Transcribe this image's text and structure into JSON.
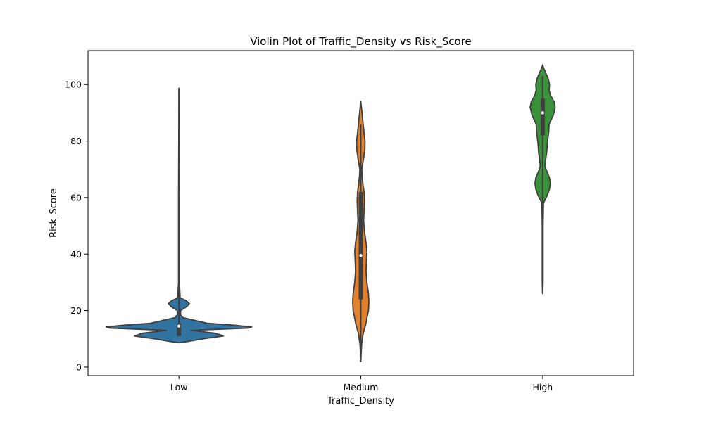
{
  "chart_data": {
    "type": "violin",
    "title": "Violin Plot of Traffic_Density vs Risk_Score",
    "xlabel": "Traffic_Density",
    "ylabel": "Risk_Score",
    "categories": [
      "Low",
      "Medium",
      "High"
    ],
    "ylim": [
      -3,
      112
    ],
    "yticks": [
      0,
      20,
      40,
      60,
      80,
      100
    ],
    "grid": false,
    "colors": {
      "Low": "#3274a1",
      "Medium": "#e1812c",
      "High": "#3a923a",
      "outline": "#3f3f3f"
    },
    "violins": [
      {
        "category": "Low",
        "min": 11,
        "q1": 11,
        "median": 14.5,
        "q3": 15.5,
        "max": 98.7,
        "density": [
          [
            8.6,
            0.0
          ],
          [
            9.0,
            0.1
          ],
          [
            10.0,
            0.3
          ],
          [
            11.0,
            0.55
          ],
          [
            12.0,
            0.45
          ],
          [
            13.0,
            0.15
          ],
          [
            13.8,
            0.85
          ],
          [
            14.2,
            0.9
          ],
          [
            14.8,
            0.7
          ],
          [
            15.5,
            0.35
          ],
          [
            16.5,
            0.2
          ],
          [
            17.5,
            0.05
          ],
          [
            18.5,
            0.02
          ],
          [
            20.0,
            0.02
          ],
          [
            21.5,
            0.1
          ],
          [
            22.5,
            0.13
          ],
          [
            23.5,
            0.09
          ],
          [
            24.5,
            0.015
          ],
          [
            30.0,
            0.005
          ],
          [
            60.0,
            0.005
          ],
          [
            98.7,
            0.0
          ]
        ]
      },
      {
        "category": "Medium",
        "min": 2,
        "q1": 24,
        "median": 39.5,
        "q3": 62,
        "max": 86,
        "density": [
          [
            2.0,
            0.0
          ],
          [
            8.0,
            0.01
          ],
          [
            12.0,
            0.03
          ],
          [
            15.0,
            0.06
          ],
          [
            18.0,
            0.08
          ],
          [
            20.0,
            0.095
          ],
          [
            23.0,
            0.1
          ],
          [
            26.0,
            0.095
          ],
          [
            30.0,
            0.075
          ],
          [
            34.0,
            0.065
          ],
          [
            38.0,
            0.07
          ],
          [
            41.0,
            0.075
          ],
          [
            44.0,
            0.065
          ],
          [
            48.0,
            0.045
          ],
          [
            52.0,
            0.035
          ],
          [
            55.0,
            0.04
          ],
          [
            59.0,
            0.045
          ],
          [
            62.0,
            0.04
          ],
          [
            65.0,
            0.025
          ],
          [
            68.0,
            0.015
          ],
          [
            70.0,
            0.012
          ],
          [
            73.0,
            0.03
          ],
          [
            77.0,
            0.05
          ],
          [
            80.0,
            0.052
          ],
          [
            83.0,
            0.04
          ],
          [
            87.0,
            0.025
          ],
          [
            90.0,
            0.015
          ],
          [
            94.0,
            0.0
          ]
        ]
      },
      {
        "category": "High",
        "min": 26,
        "q1": 82,
        "median": 90,
        "q3": 95,
        "max": 103,
        "density": [
          [
            26.0,
            0.0
          ],
          [
            30.0,
            0.005
          ],
          [
            40.0,
            0.005
          ],
          [
            50.0,
            0.005
          ],
          [
            58.0,
            0.01
          ],
          [
            61.0,
            0.06
          ],
          [
            63.0,
            0.085
          ],
          [
            65.0,
            0.095
          ],
          [
            67.0,
            0.085
          ],
          [
            69.0,
            0.055
          ],
          [
            71.0,
            0.03
          ],
          [
            73.0,
            0.035
          ],
          [
            76.0,
            0.05
          ],
          [
            80.0,
            0.06
          ],
          [
            83.0,
            0.075
          ],
          [
            86.0,
            0.08
          ],
          [
            89.0,
            0.13
          ],
          [
            92.0,
            0.155
          ],
          [
            94.0,
            0.14
          ],
          [
            96.0,
            0.1
          ],
          [
            98.0,
            0.08
          ],
          [
            100.0,
            0.085
          ],
          [
            102.0,
            0.07
          ],
          [
            104.0,
            0.04
          ],
          [
            106.0,
            0.01
          ],
          [
            107.0,
            0.0
          ]
        ]
      }
    ]
  }
}
